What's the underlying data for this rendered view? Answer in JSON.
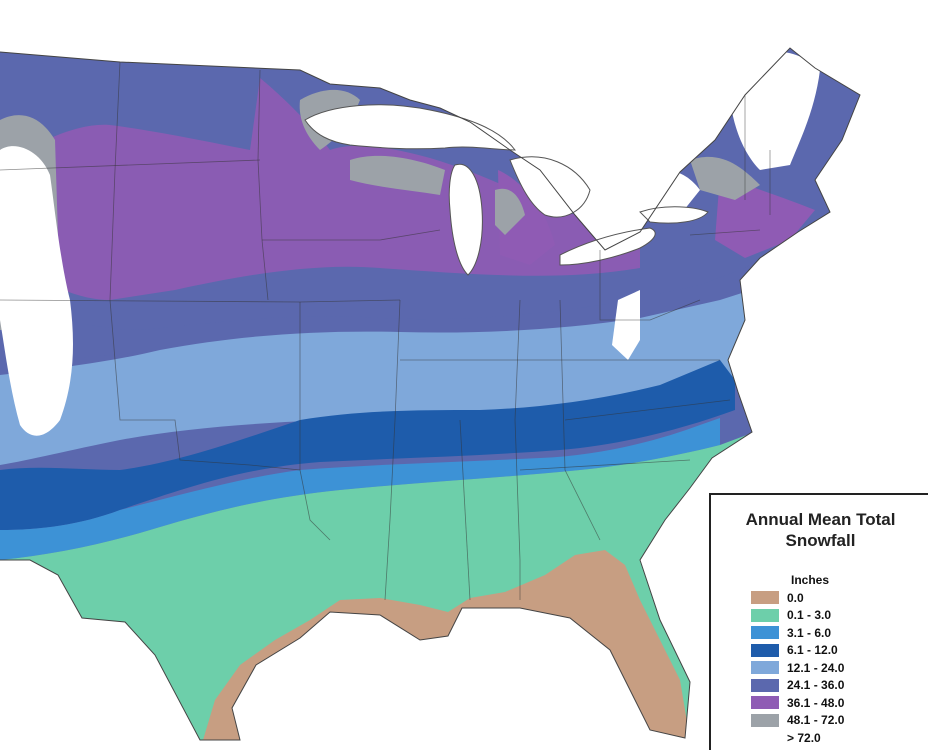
{
  "legend": {
    "title_line1": "Annual Mean Total",
    "title_line2": "Snowfall",
    "units": "Inches",
    "items": [
      {
        "label": "0.0",
        "color": "#C79E82"
      },
      {
        "label": "0.1 - 3.0",
        "color": "#6DCFAA"
      },
      {
        "label": "3.1 - 6.0",
        "color": "#3D92D6"
      },
      {
        "label": "6.1 - 12.0",
        "color": "#1E5CAB"
      },
      {
        "label": "12.1 - 24.0",
        "color": "#7FA8DA"
      },
      {
        "label": "24.1 - 36.0",
        "color": "#5B68AE"
      },
      {
        "label": "36.1 - 48.0",
        "color": "#8F5BB4"
      },
      {
        "label": "48.1 - 72.0",
        "color": "#9CA2A8"
      },
      {
        "label": "> 72.0",
        "color": "#FFFFFF"
      }
    ]
  }
}
